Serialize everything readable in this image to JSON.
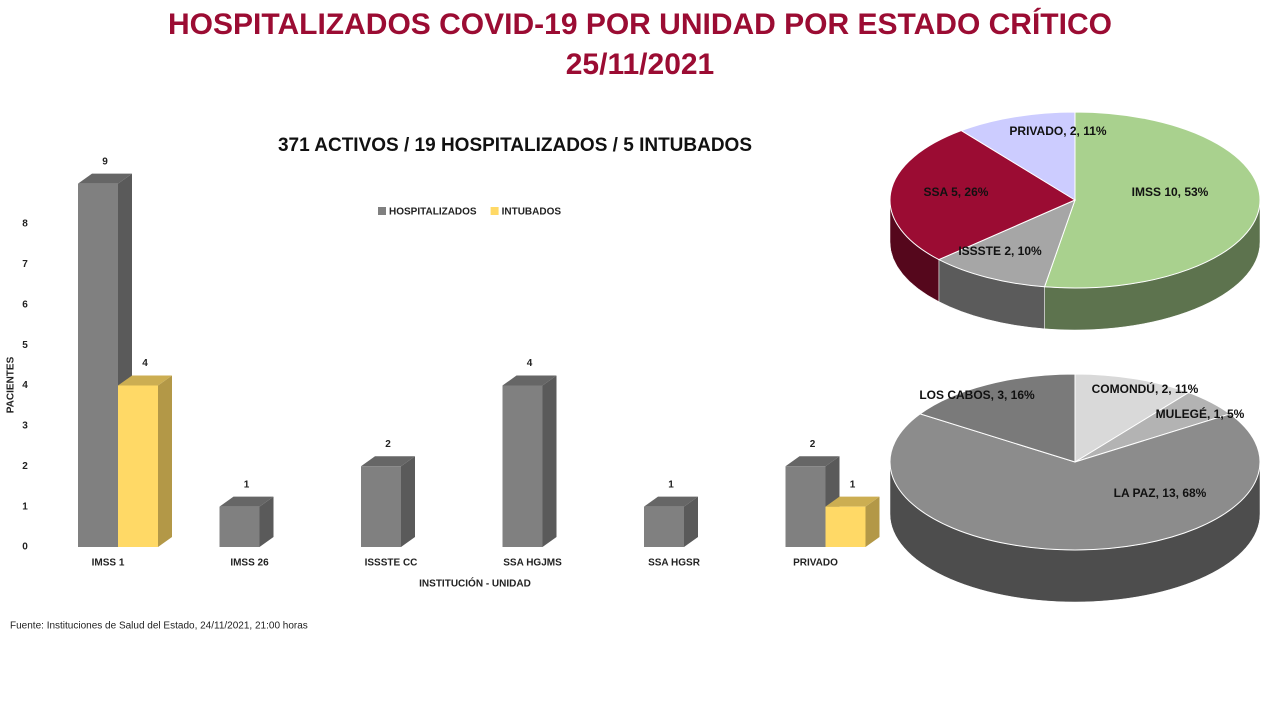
{
  "header": {
    "title": "HOSPITALIZADOS COVID-19 POR UNIDAD POR ESTADO CRÍTICO",
    "date": "25/11/2021"
  },
  "source": "Fuente: Instituciones de Salud del Estado, 24/11/2021, 21:00 horas",
  "chart_data": [
    {
      "type": "bar",
      "title": "371 ACTIVOS / 19 HOSPITALIZADOS / 5 INTUBADOS",
      "x_label": "INSTITUCIÓN - UNIDAD",
      "y_label": "PACIENTES",
      "categories": [
        "IMSS 1",
        "IMSS 26",
        "ISSSTE CC",
        "SSA HGJMS",
        "SSA HGSR",
        "PRIVADO"
      ],
      "series": [
        {
          "name": "HOSPITALIZADOS",
          "color": "#808080",
          "values": [
            9,
            1,
            2,
            4,
            1,
            2
          ]
        },
        {
          "name": "INTUBADOS",
          "color": "#ffd966",
          "values": [
            4,
            null,
            null,
            null,
            null,
            1
          ]
        }
      ],
      "ylim": [
        0,
        9
      ],
      "yticks": [
        0,
        1,
        2,
        3,
        4,
        5,
        6,
        7,
        8
      ],
      "legend": "top",
      "grid": false
    },
    {
      "type": "pie",
      "labels": [
        "IMSS 10, 53%",
        "ISSSTE 2, 10%",
        "SSA 5, 26%",
        "PRIVADO, 2, 11%"
      ],
      "values": [
        10,
        2,
        5,
        2
      ],
      "colors": [
        "#a9d18e",
        "#a6a6a6",
        "#9b0c33",
        "#ccccff"
      ]
    },
    {
      "type": "pie",
      "labels": [
        "COMONDÚ, 2, 11%",
        "MULEGÉ, 1, 5%",
        "LA PAZ, 13, 68%",
        "LOS CABOS, 3, 16%"
      ],
      "values": [
        2,
        1,
        13,
        3
      ],
      "colors": [
        "#d9d9d9",
        "#b3b3b3",
        "#8c8c8c",
        "#7a7a7a"
      ]
    }
  ]
}
